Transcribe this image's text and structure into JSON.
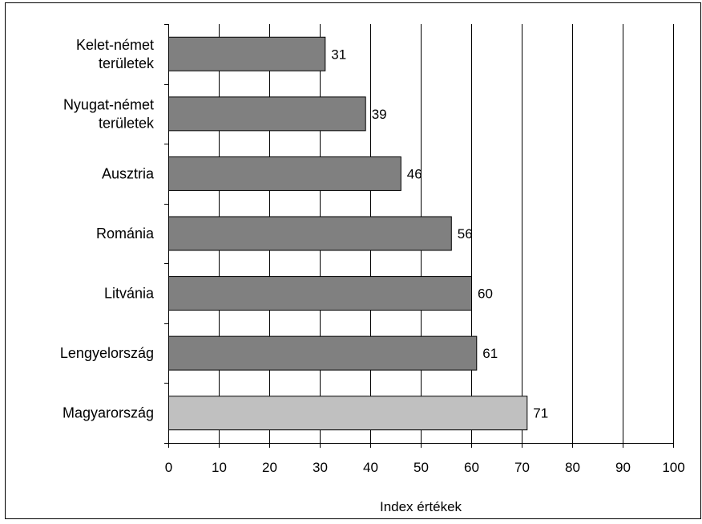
{
  "chart_data": {
    "type": "bar",
    "orientation": "horizontal",
    "categories": [
      [
        "Kelet-német",
        "területek"
      ],
      [
        "Nyugat-német",
        "területek"
      ],
      [
        "Ausztria"
      ],
      [
        "Románia"
      ],
      [
        "Litvánia"
      ],
      [
        "Lengyelország"
      ],
      [
        "Magyarország"
      ]
    ],
    "values": [
      31,
      39,
      46,
      56,
      60,
      61,
      71
    ],
    "data_labels": [
      "31",
      "39",
      "46",
      "56",
      "60",
      "61",
      "71"
    ],
    "bar_colors": [
      "#808080",
      "#808080",
      "#808080",
      "#808080",
      "#808080",
      "#808080",
      "#c0c0c0"
    ],
    "xlabel": "Index értékek",
    "ylabel": "",
    "title": "",
    "xlim": [
      0,
      100
    ],
    "xticks": [
      0,
      10,
      20,
      30,
      40,
      50,
      60,
      70,
      80,
      90,
      100
    ],
    "grid": "vertical",
    "legend": "none"
  }
}
